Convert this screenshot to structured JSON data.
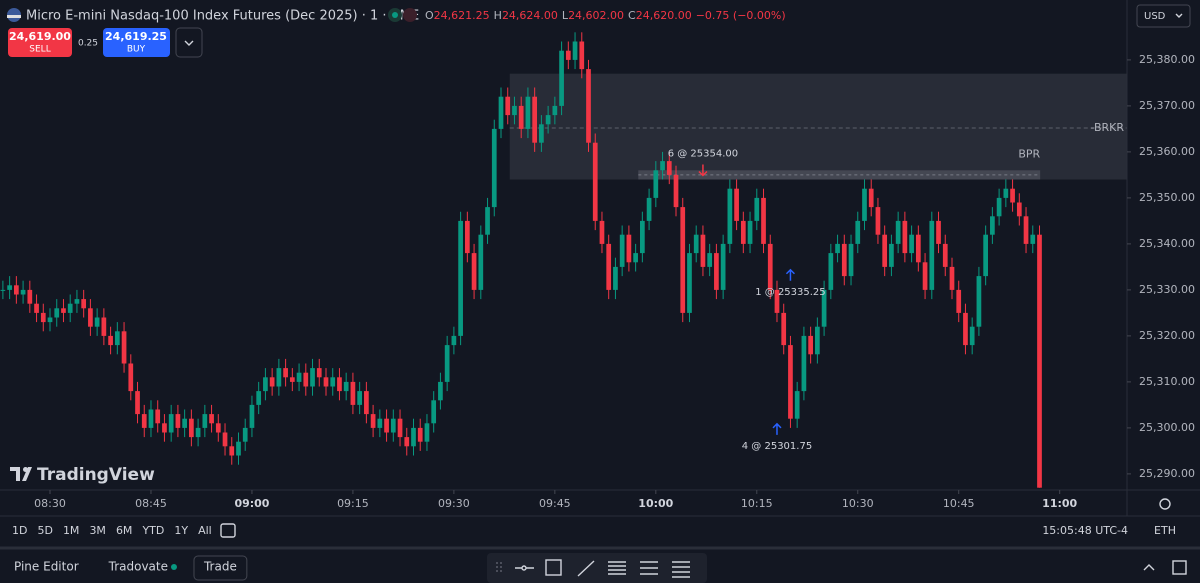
{
  "header": {
    "symbol": "Micro E-mini Nasdaq-100 Index Futures (Dec 2025) · 1 · CME",
    "ohlc": [
      {
        "key": "O",
        "value": "24,621.25"
      },
      {
        "key": "H",
        "value": "24,624.00"
      },
      {
        "key": "L",
        "value": "24,602.00"
      },
      {
        "key": "C",
        "value": "24,620.00"
      }
    ],
    "change": "−0.75 (−0.00%)"
  },
  "order": {
    "sell_price": "24,619.00",
    "sell_label": "SELL",
    "spread": "0.25",
    "buy_price": "24,619.25",
    "buy_label": "BUY"
  },
  "currency": "USD",
  "logo": "TradingView",
  "ranges": [
    "1D",
    "5D",
    "1M",
    "3M",
    "6M",
    "YTD",
    "1Y",
    "All"
  ],
  "clock": "15:05:48 UTC-4",
  "session": "ETH",
  "bottom_tabs": [
    "Pine Editor",
    "Tradovate",
    "Trade"
  ],
  "chart_data": {
    "type": "candlestick",
    "up_color": "#089981",
    "down_color": "#f23645",
    "grid": false,
    "xlim": [
      502.57,
      670
    ],
    "xticks": [
      {
        "value": 510,
        "label": "08:30"
      },
      {
        "value": 525,
        "label": "08:45"
      },
      {
        "value": 540,
        "label": "09:00"
      },
      {
        "value": 555,
        "label": "09:15"
      },
      {
        "value": 570,
        "label": "09:30"
      },
      {
        "value": 585,
        "label": "09:45"
      },
      {
        "value": 600,
        "label": "10:00"
      },
      {
        "value": 615,
        "label": "10:15"
      },
      {
        "value": 630,
        "label": "10:30"
      },
      {
        "value": 645,
        "label": "10:45"
      },
      {
        "value": 660,
        "label": "11:00"
      }
    ],
    "ylim": [
      25286.5,
      25386.5
    ],
    "yticks": [
      {
        "value": 25290,
        "label": "25,290.00"
      },
      {
        "value": 25300,
        "label": "25,300.00"
      },
      {
        "value": 25310,
        "label": "25,310.00"
      },
      {
        "value": 25320,
        "label": "25,320.00"
      },
      {
        "value": 25330,
        "label": "25,330.00"
      },
      {
        "value": 25340,
        "label": "25,340.00"
      },
      {
        "value": 25350,
        "label": "25,350.00"
      },
      {
        "value": 25360,
        "label": "25,360.00"
      },
      {
        "value": 25370,
        "label": "25,370.00"
      },
      {
        "value": 25380,
        "label": "25,380.00"
      }
    ],
    "x": [
      503,
      504,
      505,
      506,
      507,
      508,
      509,
      510,
      511,
      512,
      513,
      514,
      515,
      516,
      517,
      518,
      519,
      520,
      521,
      522,
      523,
      524,
      525,
      526,
      527,
      528,
      529,
      530,
      531,
      532,
      533,
      534,
      535,
      536,
      537,
      538,
      539,
      540,
      541,
      542,
      543,
      544,
      545,
      546,
      547,
      548,
      549,
      550,
      551,
      552,
      553,
      554,
      555,
      556,
      557,
      558,
      559,
      560,
      561,
      562,
      563,
      564,
      565,
      566,
      567,
      568,
      569,
      570,
      571,
      572,
      573,
      574,
      575,
      576,
      577,
      578,
      579,
      580,
      581,
      582,
      583,
      584,
      585,
      586,
      587,
      588,
      589,
      590,
      591,
      592,
      593,
      594,
      595,
      596,
      597,
      598,
      599,
      600,
      601,
      602,
      603,
      604,
      605,
      606,
      607,
      608,
      609,
      610,
      611,
      612,
      613,
      614,
      615,
      616,
      617,
      618,
      619,
      620,
      621,
      622,
      623,
      624,
      625,
      626,
      627,
      628,
      629,
      630,
      631,
      632,
      633,
      634,
      635,
      636,
      637,
      638,
      639,
      640,
      641,
      642,
      643,
      644,
      645,
      646,
      647,
      648,
      649,
      650,
      651,
      652,
      653,
      654,
      655,
      656,
      657
    ],
    "open": [
      25330,
      25330,
      25331,
      25329,
      25330,
      25327,
      25325,
      25323,
      25324,
      25326,
      25325,
      25327,
      25328,
      25326,
      25322,
      25324,
      25320,
      25318,
      25321,
      25314,
      25308,
      25303,
      25300,
      25304,
      25301,
      25299,
      25303,
      25300,
      25302,
      25298,
      25300,
      25303,
      25301,
      25299,
      25296,
      25294,
      25297,
      25300,
      25305,
      25308,
      25311,
      25309,
      25313,
      25311,
      25310,
      25312,
      25309,
      25313,
      25311,
      25309,
      25311,
      25308,
      25310,
      25305,
      25308,
      25303,
      25300,
      25302,
      25299,
      25302,
      25298,
      25296,
      25300,
      25297,
      25301,
      25306,
      25310,
      25318,
      25320,
      25345,
      25338,
      25330,
      25342,
      25348,
      25365,
      25372,
      25368,
      25370,
      25365,
      25372,
      25362,
      25366,
      25368,
      25370,
      25382,
      25380,
      25384,
      25378,
      25362,
      25345,
      25340,
      25330,
      25335,
      25342,
      25336,
      25338,
      25345,
      25350,
      25356,
      25358,
      25355,
      25348,
      25325,
      25338,
      25342,
      25335,
      25338,
      25330,
      25340,
      25352,
      25345,
      25340,
      25345,
      25350,
      25340,
      25330,
      25325,
      25318,
      25302,
      25308,
      25320,
      25316,
      25322,
      25330,
      25338,
      25340,
      25333,
      25340,
      25345,
      25352,
      25348,
      25342,
      25335,
      25340,
      25345,
      25338,
      25342,
      25336,
      25330,
      25345,
      25340,
      25335,
      25330,
      25325,
      25318,
      25322,
      25333,
      25342,
      25346,
      25350,
      25352,
      25349,
      25346,
      25340,
      25342
    ],
    "high": [
      25332,
      25333,
      25333,
      25332,
      25332,
      25329,
      25327,
      25326,
      25328,
      25328,
      25329,
      25330,
      25330,
      25328,
      25326,
      25326,
      25322,
      25323,
      25323,
      25316,
      25310,
      25305,
      25306,
      25306,
      25303,
      25305,
      25305,
      25304,
      25304,
      25302,
      25305,
      25305,
      25303,
      25301,
      25298,
      25299,
      25302,
      25307,
      25310,
      25313,
      25313,
      25315,
      25315,
      25313,
      25314,
      25314,
      25315,
      25315,
      25313,
      25313,
      25313,
      25312,
      25312,
      25310,
      25310,
      25305,
      25304,
      25304,
      25304,
      25304,
      25300,
      25302,
      25302,
      25303,
      25308,
      25312,
      25320,
      25322,
      25347,
      25347,
      25340,
      25344,
      25350,
      25367,
      25374,
      25374,
      25372,
      25372,
      25374,
      25374,
      25368,
      25370,
      25372,
      25384,
      25384,
      25386,
      25386,
      25380,
      25364,
      25347,
      25342,
      25337,
      25344,
      25344,
      25340,
      25347,
      25352,
      25358,
      25360,
      25360,
      25357,
      25350,
      25340,
      25344,
      25344,
      25340,
      25340,
      25342,
      25354,
      25354,
      25347,
      25347,
      25352,
      25352,
      25342,
      25332,
      25327,
      25320,
      25310,
      25322,
      25322,
      25324,
      25332,
      25340,
      25342,
      25342,
      25342,
      25347,
      25354,
      25354,
      25350,
      25344,
      25342,
      25347,
      25347,
      25344,
      25344,
      25338,
      25347,
      25347,
      25342,
      25337,
      25332,
      25327,
      25324,
      25335,
      25344,
      25348,
      25352,
      25354,
      25354,
      25351,
      25348,
      25344,
      25344
    ],
    "low": [
      25328,
      25328,
      25327,
      25327,
      25325,
      25323,
      25321,
      25321,
      25322,
      25323,
      25323,
      25325,
      25324,
      25320,
      25320,
      25318,
      25316,
      25316,
      25312,
      25306,
      25301,
      25298,
      25298,
      25299,
      25297,
      25297,
      25298,
      25298,
      25296,
      25296,
      25298,
      25299,
      25297,
      25294,
      25292,
      25292,
      25295,
      25298,
      25303,
      25306,
      25307,
      25307,
      25309,
      25308,
      25308,
      25307,
      25307,
      25309,
      25307,
      25307,
      25306,
      25306,
      25303,
      25303,
      25301,
      25298,
      25298,
      25297,
      25297,
      25296,
      25294,
      25294,
      25295,
      25295,
      25299,
      25304,
      25308,
      25316,
      25318,
      25336,
      25328,
      25328,
      25340,
      25346,
      25363,
      25366,
      25366,
      25363,
      25363,
      25360,
      25360,
      25364,
      25366,
      25368,
      25378,
      25378,
      25376,
      25360,
      25343,
      25338,
      25328,
      25328,
      25333,
      25334,
      25334,
      25336,
      25343,
      25348,
      25354,
      25353,
      25346,
      25323,
      25323,
      25336,
      25333,
      25333,
      25328,
      25328,
      25338,
      25343,
      25338,
      25338,
      25343,
      25338,
      25328,
      25323,
      25316,
      25300,
      25300,
      25306,
      25314,
      25314,
      25320,
      25328,
      25336,
      25331,
      25331,
      25338,
      25343,
      25346,
      25340,
      25333,
      25333,
      25338,
      25336,
      25336,
      25334,
      25328,
      25328,
      25338,
      25333,
      25328,
      25323,
      25316,
      25316,
      25320,
      25331,
      25340,
      25344,
      25348,
      25347,
      25344,
      25338,
      25338,
      25287
    ],
    "close": [
      25330,
      25331,
      25329,
      25330,
      25327,
      25325,
      25323,
      25324,
      25326,
      25325,
      25327,
      25328,
      25326,
      25322,
      25324,
      25320,
      25318,
      25321,
      25314,
      25308,
      25303,
      25300,
      25304,
      25301,
      25299,
      25303,
      25300,
      25302,
      25298,
      25300,
      25303,
      25301,
      25299,
      25296,
      25294,
      25297,
      25300,
      25305,
      25308,
      25311,
      25309,
      25313,
      25311,
      25310,
      25312,
      25309,
      25313,
      25311,
      25309,
      25311,
      25308,
      25310,
      25305,
      25308,
      25303,
      25300,
      25302,
      25299,
      25302,
      25298,
      25296,
      25300,
      25297,
      25301,
      25306,
      25310,
      25318,
      25320,
      25345,
      25338,
      25330,
      25342,
      25348,
      25365,
      25372,
      25368,
      25370,
      25365,
      25372,
      25362,
      25366,
      25368,
      25370,
      25382,
      25380,
      25384,
      25378,
      25362,
      25345,
      25340,
      25330,
      25335,
      25342,
      25336,
      25338,
      25345,
      25350,
      25356,
      25358,
      25355,
      25348,
      25325,
      25338,
      25342,
      25335,
      25338,
      25330,
      25340,
      25352,
      25345,
      25340,
      25345,
      25350,
      25340,
      25330,
      25325,
      25318,
      25302,
      25308,
      25320,
      25316,
      25322,
      25330,
      25338,
      25340,
      25333,
      25340,
      25345,
      25352,
      25348,
      25342,
      25335,
      25340,
      25345,
      25338,
      25342,
      25336,
      25330,
      25345,
      25340,
      25335,
      25330,
      25325,
      25318,
      25322,
      25333,
      25342,
      25346,
      25350,
      25352,
      25349,
      25346,
      25340,
      25342,
      25287
    ],
    "zones": [
      {
        "label": "-BRKR",
        "x": [
          578.3,
          670
        ],
        "y": [
          25354,
          25377
        ],
        "line": 25365.2
      },
      {
        "label": "BPR",
        "x": [
          597.4,
          657.1
        ],
        "y": [
          25354,
          25356
        ]
      }
    ],
    "trades": [
      {
        "label": "6 @ 25354.00",
        "x": 607,
        "price": 25354,
        "side": "sell"
      },
      {
        "label": "1 @ 25335.25",
        "x": 620,
        "price": 25335.25,
        "side": "buy"
      },
      {
        "label": "4 @ 25301.75",
        "x": 618,
        "price": 25301.75,
        "side": "buy"
      }
    ]
  }
}
